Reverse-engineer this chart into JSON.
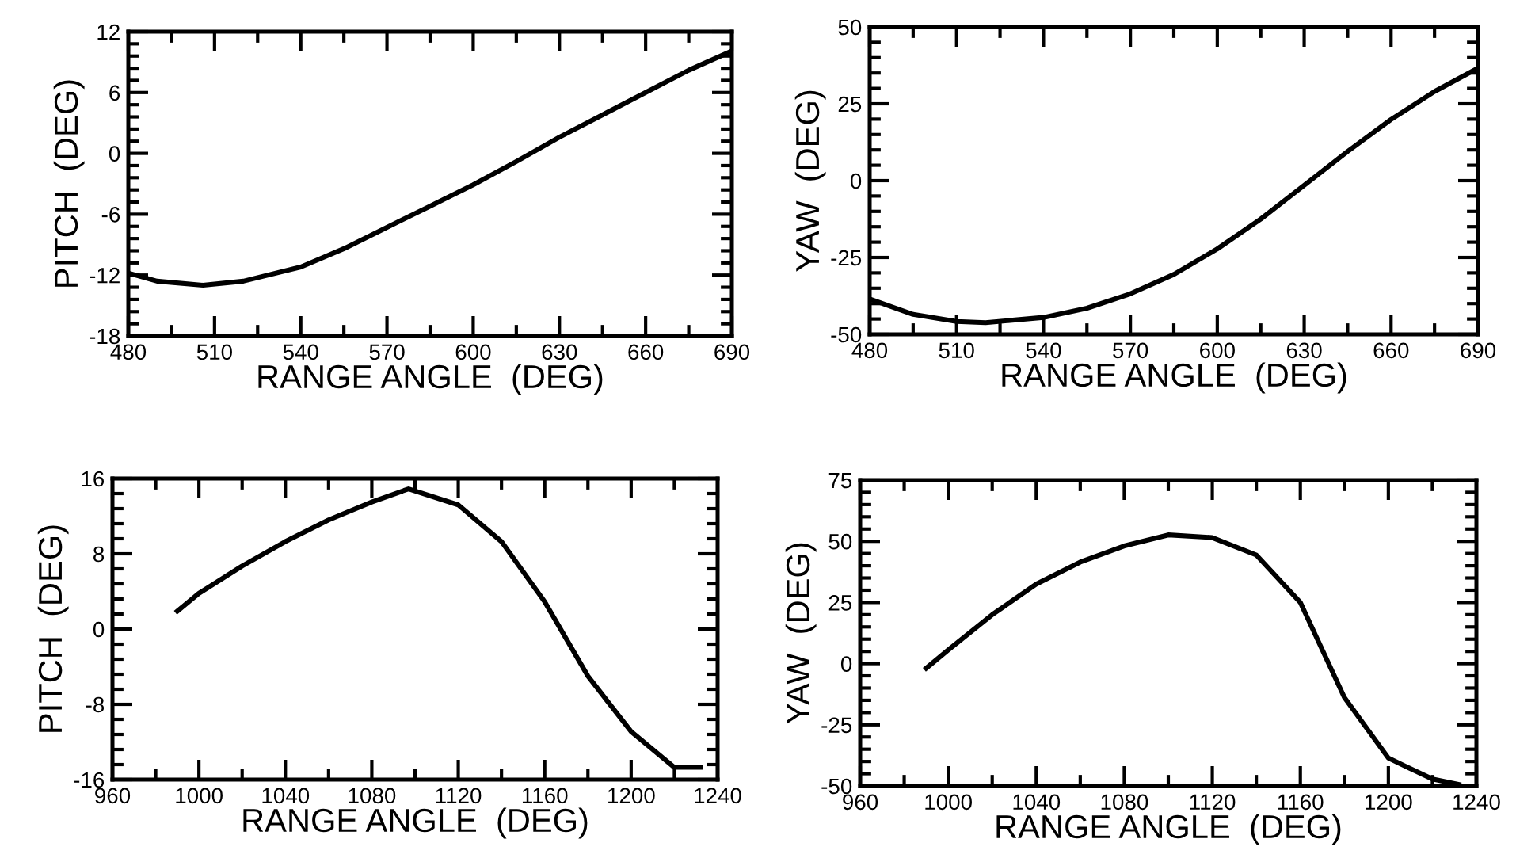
{
  "chart_data": [
    {
      "type": "line",
      "xlabel": "RANGE ANGLE  (DEG)",
      "ylabel": "PITCH  (DEG)",
      "xlim": [
        480,
        690
      ],
      "xticks": [
        480,
        510,
        540,
        570,
        600,
        630,
        660,
        690
      ],
      "ylim": [
        -18,
        12
      ],
      "yticks": [
        -18,
        -12,
        -6,
        0,
        6,
        12
      ],
      "grid": false,
      "legend": false,
      "marker": "none",
      "line_style": "solid",
      "series": [
        {
          "color": "#000000",
          "x": [
            480,
            490,
            506,
            520,
            540,
            555,
            570,
            585,
            600,
            615,
            630,
            645,
            660,
            675,
            690
          ],
          "values": [
            -11.8,
            -12.6,
            -13,
            -12.6,
            -11.2,
            -9.4,
            -7.3,
            -5.2,
            -3.1,
            -0.8,
            1.6,
            3.8,
            6,
            8.2,
            10.1
          ]
        }
      ]
    },
    {
      "type": "line",
      "xlabel": "RANGE ANGLE  (DEG)",
      "ylabel": "YAW  (DEG)",
      "xlim": [
        480,
        690
      ],
      "xticks": [
        480,
        510,
        540,
        570,
        600,
        630,
        660,
        690
      ],
      "ylim": [
        -50,
        50
      ],
      "yticks": [
        -50,
        -25,
        0,
        25,
        50
      ],
      "grid": false,
      "legend": false,
      "marker": "none",
      "line_style": "solid",
      "series": [
        {
          "color": "#000000",
          "x": [
            480,
            495,
            510,
            520,
            540,
            555,
            570,
            585,
            600,
            615,
            630,
            645,
            660,
            675,
            690
          ],
          "values": [
            -38.5,
            -43.5,
            -45.8,
            -46.2,
            -44.5,
            -41.5,
            -36.8,
            -30.5,
            -22.2,
            -12.5,
            -1.5,
            9.5,
            19.9,
            29,
            36.6
          ]
        }
      ]
    },
    {
      "type": "line",
      "xlabel": "RANGE ANGLE  (DEG)",
      "ylabel": "PITCH  (DEG)",
      "xlim": [
        960,
        1240
      ],
      "xticks": [
        960,
        1000,
        1040,
        1080,
        1120,
        1160,
        1200,
        1240
      ],
      "ylim": [
        -16,
        16
      ],
      "yticks": [
        -16,
        -8,
        0,
        8,
        16
      ],
      "grid": false,
      "legend": false,
      "marker": "none",
      "line_style": "solid",
      "series": [
        {
          "color": "#000000",
          "x": [
            990,
            1000,
            1020,
            1040,
            1060,
            1080,
            1097,
            1120,
            1140,
            1160,
            1180,
            1200,
            1220,
            1232
          ],
          "values": [
            1.9,
            3.8,
            6.7,
            9.3,
            11.6,
            13.5,
            14.9,
            13.2,
            9.3,
            2.9,
            -5,
            -10.9,
            -14.7,
            -14.7
          ]
        }
      ]
    },
    {
      "type": "line",
      "xlabel": "RANGE ANGLE  (DEG)",
      "ylabel": "YAW  (DEG)",
      "xlim": [
        960,
        1240
      ],
      "xticks": [
        960,
        1000,
        1040,
        1080,
        1120,
        1160,
        1200,
        1240
      ],
      "ylim": [
        -50,
        75
      ],
      "yticks": [
        -50,
        -25,
        0,
        25,
        50,
        75
      ],
      "grid": false,
      "legend": false,
      "marker": "none",
      "line_style": "solid",
      "series": [
        {
          "color": "#000000",
          "x": [
            990,
            1000,
            1020,
            1040,
            1060,
            1080,
            1100,
            1120,
            1140,
            1160,
            1180,
            1200,
            1220,
            1232
          ],
          "values": [
            -1.9,
            5.6,
            20,
            32.5,
            41.5,
            48.1,
            52.6,
            51.5,
            44.4,
            25,
            -13.8,
            -38.6,
            -47.2,
            -49.4
          ]
        }
      ]
    }
  ]
}
